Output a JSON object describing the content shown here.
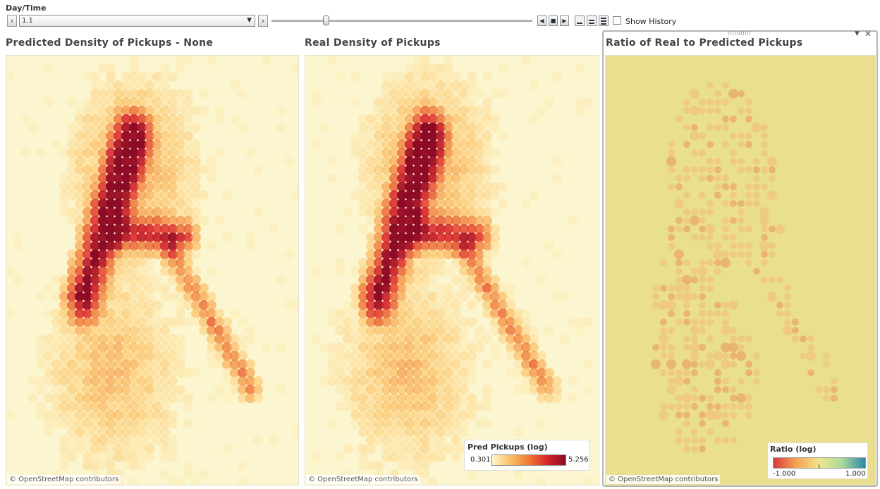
{
  "controls": {
    "label": "Day/Time",
    "prev_icon": "chevron-left",
    "next_icon": "chevron-right",
    "select_value": "1.1",
    "slider_position": 0.2,
    "history_label": "Show History",
    "history_checked": false,
    "playback_icons": [
      "step-back",
      "stop",
      "play"
    ],
    "speed_icons": [
      "speed-slow",
      "speed-medium",
      "speed-fast"
    ]
  },
  "panels": {
    "predicted": {
      "title": "Predicted Density of Pickups - None",
      "credit": "© OpenStreetMap contributors"
    },
    "real": {
      "title": "Real Density of Pickups",
      "credit": "© OpenStreetMap contributors"
    },
    "ratio": {
      "title": "Ratio of Real to Predicted Pickups",
      "credit": "© OpenStreetMap contributors"
    }
  },
  "legend_density": {
    "title": "Pred Pickups (log)",
    "min": "0.301",
    "max": "5.256",
    "colors": [
      "#fff8cc",
      "#fbc064",
      "#f07a33",
      "#d8262a",
      "#8c0b26"
    ]
  },
  "legend_ratio": {
    "title": "Ratio (log)",
    "min": "-1.000",
    "max": "1.000",
    "colors": [
      "#d83a3a",
      "#f5a452",
      "#f0e68c",
      "#a7d99a",
      "#2e88a8"
    ]
  },
  "colors": {
    "map_bg": "#fbf6cf",
    "ratio_bg": "#e9df8e"
  }
}
